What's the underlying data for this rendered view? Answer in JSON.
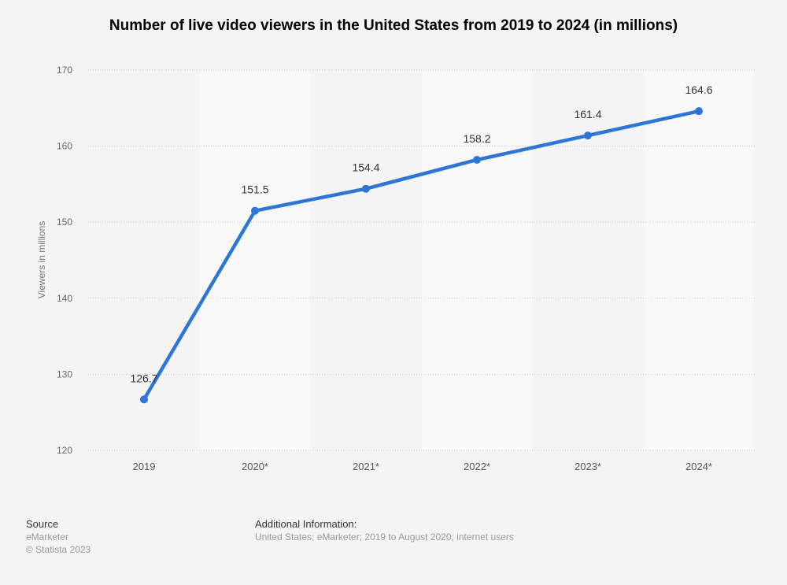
{
  "chart_data": {
    "type": "line",
    "title": "Number of live video viewers in the United States from 2019 to 2024 (in millions)",
    "xlabel": "",
    "ylabel": "Viewers in millions",
    "categories": [
      "2019",
      "2020*",
      "2021*",
      "2022*",
      "2023*",
      "2024*"
    ],
    "values": [
      126.7,
      151.5,
      154.4,
      158.2,
      161.4,
      164.6
    ],
    "data_labels": [
      "126.7",
      "151.5",
      "154.4",
      "158.2",
      "161.4",
      "164.6"
    ],
    "ylim": [
      120,
      170
    ],
    "yticks": [
      120,
      130,
      140,
      150,
      160,
      170
    ],
    "grid": true,
    "legend": "none",
    "line_color": "#2e76d6"
  },
  "footer": {
    "source_heading": "Source",
    "source": "eMarketer",
    "copyright": "© Statista 2023",
    "info_heading": "Additional Information:",
    "info": "United States; eMarketer; 2019 to August 2020; internet users"
  }
}
